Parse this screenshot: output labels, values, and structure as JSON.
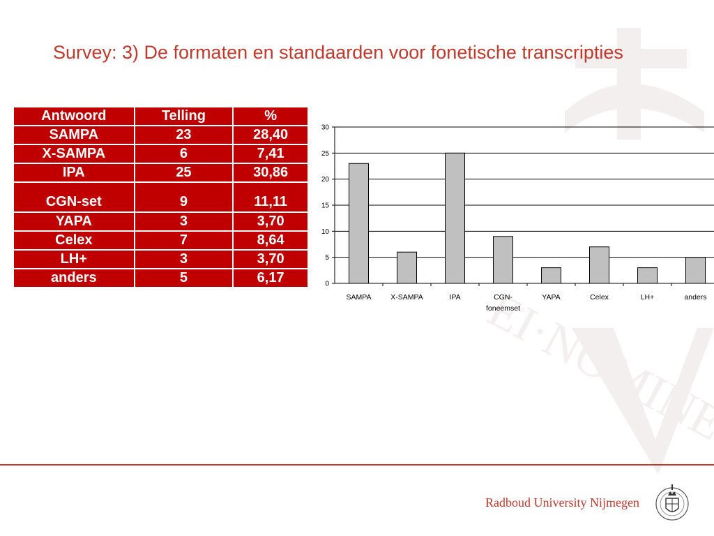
{
  "slide": {
    "title": "Survey: 3) De formaten en standaarden voor fonetische transcripties",
    "brand": "Radboud University Nijmegen",
    "colors": {
      "accent": "#c0392b",
      "table_bg": "#c00000",
      "bar_fill": "#c0c0c0"
    }
  },
  "table": {
    "headers": [
      "Antwoord",
      "Telling",
      "%"
    ],
    "rows": [
      [
        "SAMPA",
        "23",
        "28,40"
      ],
      [
        "X-SAMPA",
        "6",
        "7,41"
      ],
      [
        "IPA",
        "25",
        "30,86"
      ],
      [
        "CGN-set",
        "9",
        "11,11"
      ],
      [
        "YAPA",
        "3",
        "3,70"
      ],
      [
        "Celex",
        "7",
        "8,64"
      ],
      [
        "LH+",
        "3",
        "3,70"
      ],
      [
        "anders",
        "5",
        "6,17"
      ]
    ]
  },
  "chart_data": {
    "type": "bar",
    "categories": [
      "SAMPA",
      "X-SAMPA",
      "IPA",
      "CGN-foneemset",
      "YAPA",
      "Celex",
      "LH+",
      "anders"
    ],
    "category_labels": [
      [
        "SAMPA"
      ],
      [
        "X-SAMPA"
      ],
      [
        "IPA"
      ],
      [
        "CGN-",
        "foneemset"
      ],
      [
        "YAPA"
      ],
      [
        "Celex"
      ],
      [
        "LH+"
      ],
      [
        "anders"
      ]
    ],
    "values": [
      23,
      6,
      25,
      9,
      3,
      7,
      3,
      5
    ],
    "yticks": [
      "0",
      "5",
      "10",
      "15",
      "20",
      "25",
      "30"
    ],
    "ylim": [
      0,
      30
    ],
    "grid": true,
    "legend": "none",
    "title": "",
    "xlabel": "",
    "ylabel": ""
  }
}
